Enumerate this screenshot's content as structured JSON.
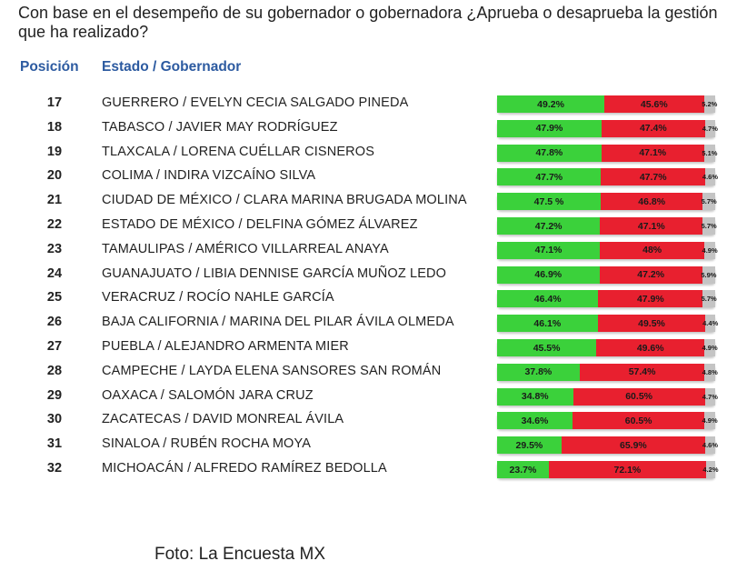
{
  "title": "Con base en el desempeño de su gobernador o gobernadora ¿Aprueba o desaprueba la gestión que ha realizado?",
  "headers": {
    "position": "Posición",
    "state": "Estado / Gobernador"
  },
  "source": "Foto: La Encuesta MX",
  "colors": {
    "approve": "#3bd13b",
    "disapprove": "#e8202f",
    "no_response": "#c4c4c4",
    "header": "#2c5aa0"
  },
  "chart_data": {
    "type": "bar",
    "stacked": true,
    "orientation": "horizontal",
    "rows": [
      {
        "rank": "17",
        "name": "GUERRERO / EVELYN CECIA SALGADO PINEDA",
        "values": [
          49.2,
          45.6,
          5.2
        ],
        "labels": [
          "49.2%",
          "45.6%",
          "5.2%"
        ]
      },
      {
        "rank": "18",
        "name": "TABASCO / JAVIER MAY RODRÍGUEZ",
        "values": [
          47.9,
          47.4,
          4.7
        ],
        "labels": [
          "47.9%",
          "47.4%",
          "4.7%"
        ]
      },
      {
        "rank": "19",
        "name": "TLAXCALA / LORENA CUÉLLAR CISNEROS",
        "values": [
          47.8,
          47.1,
          5.1
        ],
        "labels": [
          "47.8%",
          "47.1%",
          "5.1%"
        ]
      },
      {
        "rank": "20",
        "name": "COLIMA / INDIRA VIZCAÍNO SILVA",
        "values": [
          47.7,
          47.7,
          4.6
        ],
        "labels": [
          "47.7%",
          "47.7%",
          "4.6%"
        ]
      },
      {
        "rank": "21",
        "name": "CIUDAD DE MÉXICO / CLARA MARINA BRUGADA MOLINA",
        "values": [
          47.5,
          46.8,
          5.7
        ],
        "labels": [
          "47.5 %",
          "46.8%",
          "5.7%"
        ]
      },
      {
        "rank": "22",
        "name": "ESTADO DE MÉXICO / DELFINA GÓMEZ ÁLVAREZ",
        "values": [
          47.2,
          47.1,
          5.7
        ],
        "labels": [
          "47.2%",
          "47.1%",
          "5.7%"
        ]
      },
      {
        "rank": "23",
        "name": "TAMAULIPAS / AMÉRICO VILLARREAL ANAYA",
        "values": [
          47.1,
          48,
          4.9
        ],
        "labels": [
          "47.1%",
          "48%",
          "4.9%"
        ]
      },
      {
        "rank": "24",
        "name": "GUANAJUATO / LIBIA DENNISE GARCÍA MUÑOZ LEDO",
        "values": [
          46.9,
          47.2,
          5.9
        ],
        "labels": [
          "46.9%",
          "47.2%",
          "5.9%"
        ]
      },
      {
        "rank": "25",
        "name": "VERACRUZ / ROCÍO NAHLE GARCÍA",
        "values": [
          46.4,
          47.9,
          5.7
        ],
        "labels": [
          "46.4%",
          "47.9%",
          "5.7%"
        ]
      },
      {
        "rank": "26",
        "name": "BAJA CALIFORNIA / MARINA DEL PILAR ÁVILA OLMEDA",
        "values": [
          46.1,
          49.5,
          4.4
        ],
        "labels": [
          "46.1%",
          "49.5%",
          "4.4%"
        ]
      },
      {
        "rank": "27",
        "name": "PUEBLA / ALEJANDRO ARMENTA MIER",
        "values": [
          45.5,
          49.6,
          4.9
        ],
        "labels": [
          "45.5%",
          "49.6%",
          "4.9%"
        ]
      },
      {
        "rank": "28",
        "name": "CAMPECHE / LAYDA ELENA SANSORES SAN ROMÁN",
        "values": [
          37.8,
          57.4,
          4.8
        ],
        "labels": [
          "37.8%",
          "57.4%",
          "4.8%"
        ]
      },
      {
        "rank": "29",
        "name": "OAXACA / SALOMÓN JARA CRUZ",
        "values": [
          34.8,
          60.5,
          4.7
        ],
        "labels": [
          "34.8%",
          "60.5%",
          "4.7%"
        ]
      },
      {
        "rank": "30",
        "name": "ZACATECAS / DAVID MONREAL ÁVILA",
        "values": [
          34.6,
          60.5,
          4.9
        ],
        "labels": [
          "34.6%",
          "60.5%",
          "4.9%"
        ]
      },
      {
        "rank": "31",
        "name": "SINALOA / RUBÉN ROCHA MOYA",
        "values": [
          29.5,
          65.9,
          4.6
        ],
        "labels": [
          "29.5%",
          "65.9%",
          "4.6%"
        ]
      },
      {
        "rank": "32",
        "name": "MICHOACÁN / ALFREDO RAMÍREZ BEDOLLA",
        "values": [
          23.7,
          72.1,
          4.2
        ],
        "labels": [
          "23.7%",
          "72.1%",
          "4.2%"
        ]
      }
    ]
  }
}
